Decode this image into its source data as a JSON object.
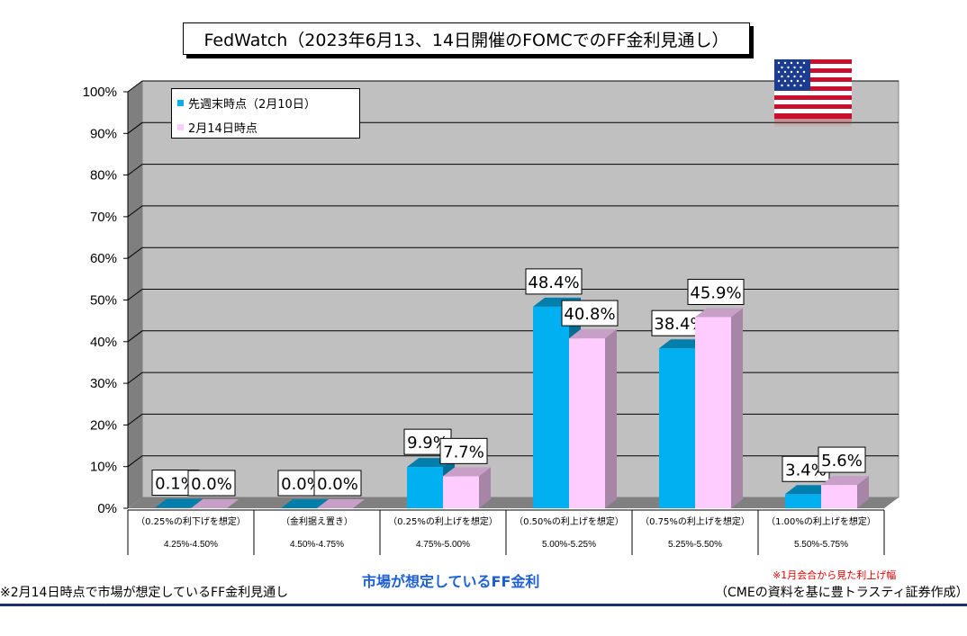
{
  "chart_data": {
    "type": "bar",
    "title": "FedWatch（2023年6月13、14日開催のFOMCでのFF金利見通し）",
    "categories": [
      {
        "top": "（0.25%の利下げを想定）",
        "bottom": "4.25%-4.50%"
      },
      {
        "top": "（金利据え置き）",
        "bottom": "4.50%-4.75%"
      },
      {
        "top": "（0.25%の利上げを想定）",
        "bottom": "4.75%-5.00%"
      },
      {
        "top": "（0.50%の利上げを想定）",
        "bottom": "5.00%-5.25%"
      },
      {
        "top": "（0.75%の利上げを想定）",
        "bottom": "5.25%-5.50%"
      },
      {
        "top": "（1.00%の利上げを想定）",
        "bottom": "5.50%-5.75%"
      }
    ],
    "series": [
      {
        "name": "先週末時点（2月10日）",
        "color": "#00b0f0",
        "values": [
          0.1,
          0.0,
          9.9,
          48.4,
          38.4,
          3.4
        ],
        "labels": [
          "0.1%",
          "0.0%",
          "9.9%",
          "48.4%",
          "38.4%",
          "3.4%"
        ]
      },
      {
        "name": "2月14日時点",
        "color": "#ffccff",
        "values": [
          0.0,
          0.0,
          7.7,
          40.8,
          45.9,
          5.6
        ],
        "labels": [
          "0.0%",
          "0.0%",
          "7.7%",
          "40.8%",
          "45.9%",
          "5.6%"
        ]
      }
    ],
    "yticks": [
      "0%",
      "10%",
      "20%",
      "30%",
      "40%",
      "50%",
      "60%",
      "70%",
      "80%",
      "90%",
      "100%"
    ],
    "ylim": [
      0,
      100
    ],
    "xlabel": "市場が想定しているFF金利",
    "ylabel": "",
    "grid": true,
    "legend_position": "top-left"
  },
  "footnotes": {
    "left": "※2月14日時点で市場が想定しているFF金利見通し",
    "red_note": "※1月会合から見た利上げ幅",
    "source": "（CMEの資料を基に豊トラスティ証券作成）"
  },
  "flag_icon": "us-flag-icon"
}
